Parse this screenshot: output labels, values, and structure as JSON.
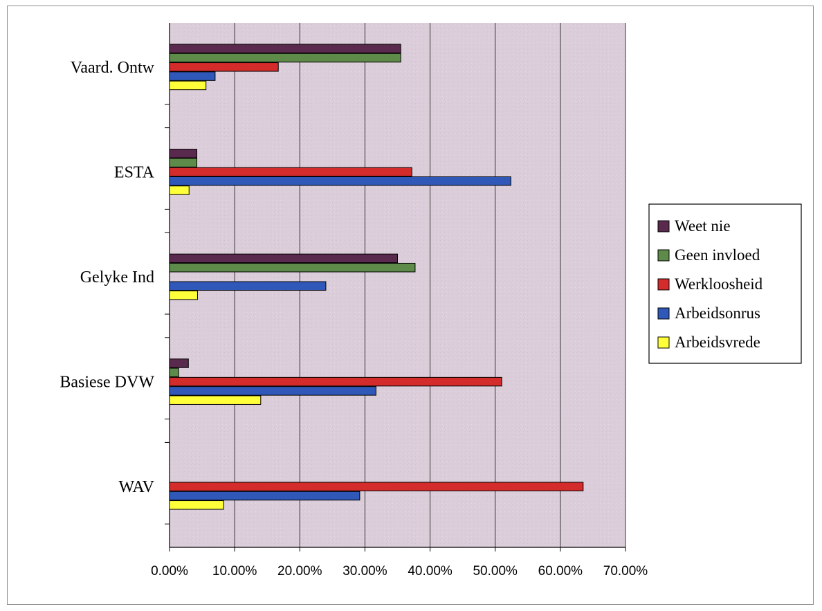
{
  "chart_data": {
    "type": "bar",
    "orientation": "horizontal",
    "categories": [
      "Vaard. Ontw",
      "ESTA",
      "Gelyke Ind",
      "Basiese DVW",
      "WAV"
    ],
    "series": [
      {
        "name": "Weet nie",
        "color": "#5a2a4e",
        "values": [
          35.5,
          4.2,
          35.0,
          2.9,
          0.0
        ]
      },
      {
        "name": "Geen invloed",
        "color": "#5e8a4a",
        "values": [
          35.5,
          4.2,
          37.7,
          1.4,
          0.0
        ]
      },
      {
        "name": "Werkloosheid",
        "color": "#d42b2b",
        "values": [
          16.7,
          37.2,
          0.0,
          51.0,
          63.5
        ]
      },
      {
        "name": "Arbeidsonrus",
        "color": "#2f58b8",
        "values": [
          7.0,
          52.4,
          24.0,
          31.7,
          29.2
        ]
      },
      {
        "name": "Arbeidsvrede",
        "color": "#ffff3a",
        "values": [
          5.6,
          3.0,
          4.3,
          14.0,
          8.3
        ]
      }
    ],
    "xlim": [
      0,
      70
    ],
    "x_ticks": [
      "0.00%",
      "10.00%",
      "20.00%",
      "30.00%",
      "40.00%",
      "50.00%",
      "60.00%",
      "70.00%"
    ],
    "title": "",
    "xlabel": "",
    "ylabel": "",
    "grid": true,
    "legend_position": "right",
    "plot_background": "#ddd0dc",
    "unit": "%"
  }
}
